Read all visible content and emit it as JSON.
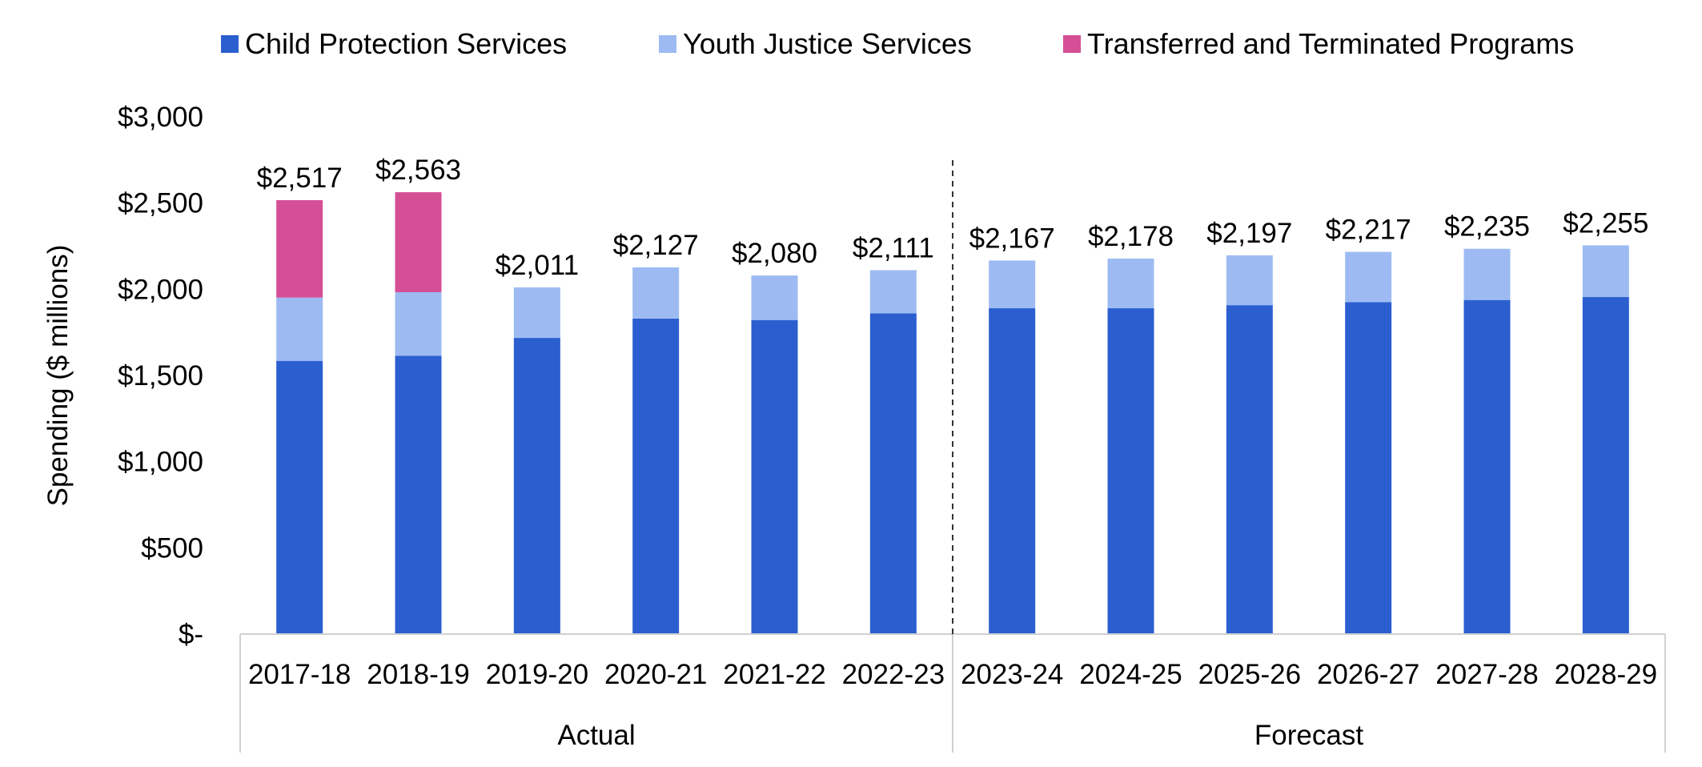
{
  "chart_data": {
    "type": "bar",
    "stacked": true,
    "ylabel": "Spending ($ millions)",
    "xlabel": "",
    "ylim": [
      0,
      3000
    ],
    "yticks": [
      0,
      500,
      1000,
      1500,
      2000,
      2500,
      3000
    ],
    "ytick_labels": [
      "$-",
      "$500",
      "$1,000",
      "$1,500",
      "$2,000",
      "$2,500",
      "$3,000"
    ],
    "grid": false,
    "legend_position": "top",
    "categories": [
      "2017-18",
      "2018-19",
      "2019-20",
      "2020-21",
      "2021-22",
      "2022-23",
      "2023-24",
      "2024-25",
      "2025-26",
      "2026-27",
      "2027-28",
      "2028-29"
    ],
    "groups": [
      {
        "label": "Actual",
        "categories": [
          "2017-18",
          "2018-19",
          "2019-20",
          "2020-21",
          "2021-22",
          "2022-23"
        ]
      },
      {
        "label": "Forecast",
        "categories": [
          "2023-24",
          "2024-25",
          "2025-26",
          "2026-27",
          "2027-28",
          "2028-29"
        ]
      }
    ],
    "series": [
      {
        "name": "Child Protection Services",
        "color": "#2b5fd0",
        "values": [
          1585,
          1615,
          1718,
          1830,
          1822,
          1860,
          1890,
          1890,
          1908,
          1925,
          1938,
          1955
        ]
      },
      {
        "name": "Youth Justice Services",
        "color": "#9dbbf2",
        "values": [
          367,
          368,
          293,
          297,
          258,
          251,
          277,
          288,
          289,
          292,
          297,
          300
        ]
      },
      {
        "name": "Transferred and Terminated Programs",
        "color": "#d44f96",
        "values": [
          565,
          580,
          0,
          0,
          0,
          0,
          0,
          0,
          0,
          0,
          0,
          0
        ]
      }
    ],
    "totals": [
      2517,
      2563,
      2011,
      2127,
      2080,
      2111,
      2167,
      2178,
      2197,
      2217,
      2235,
      2255
    ],
    "total_labels": [
      "$2,517",
      "$2,563",
      "$2,011",
      "$2,127",
      "$2,080",
      "$2,111",
      "$2,167",
      "$2,178",
      "$2,197",
      "$2,217",
      "$2,235",
      "$2,255"
    ]
  }
}
